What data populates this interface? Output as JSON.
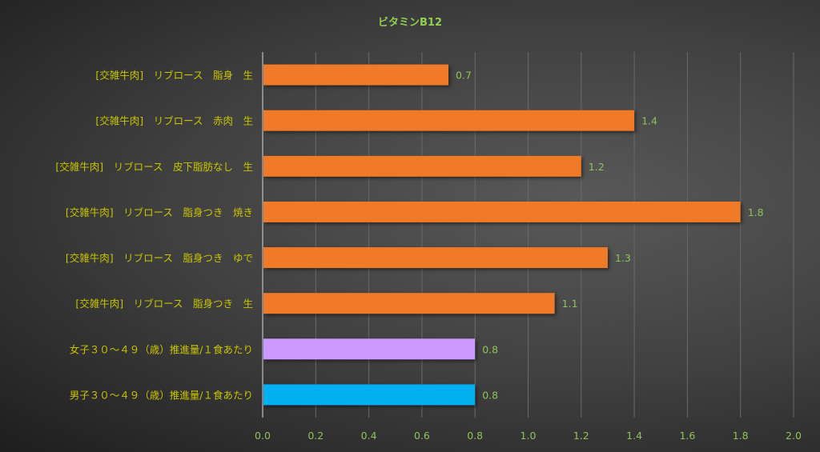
{
  "chart_data": {
    "type": "bar",
    "orientation": "horizontal",
    "title": "ビタミンB12",
    "xlabel": "",
    "ylabel": "",
    "xlim": [
      0,
      2.0
    ],
    "xticks": [
      "0.0",
      "0.2",
      "0.4",
      "0.6",
      "0.8",
      "1.0",
      "1.2",
      "1.4",
      "1.6",
      "1.8",
      "2.0"
    ],
    "grid": "vertical",
    "categories": [
      "[交雑牛肉]　リブロース　脂身　生",
      "[交雑牛肉]　リブロース　赤肉　生",
      "[交雑牛肉]　リブロース　皮下脂肪なし　生",
      "[交雑牛肉]　リブロース　脂身つき　焼き",
      "[交雑牛肉]　リブロース　脂身つき　ゆで",
      "[交雑牛肉]　リブロース　脂身つき　生",
      "女子３０～４９（歳）推進量/１食あたり",
      "男子３０～４９（歳）推進量/１食あたり"
    ],
    "values": [
      0.7,
      1.4,
      1.2,
      1.8,
      1.3,
      1.1,
      0.8,
      0.8
    ],
    "value_labels": [
      "0.7",
      "1.4",
      "1.2",
      "1.8",
      "1.3",
      "1.1",
      "0.8",
      "0.8"
    ],
    "colors": [
      "#f07a28",
      "#f07a28",
      "#f07a28",
      "#f07a28",
      "#f07a28",
      "#f07a28",
      "#cc99ff",
      "#00b0f0"
    ]
  }
}
